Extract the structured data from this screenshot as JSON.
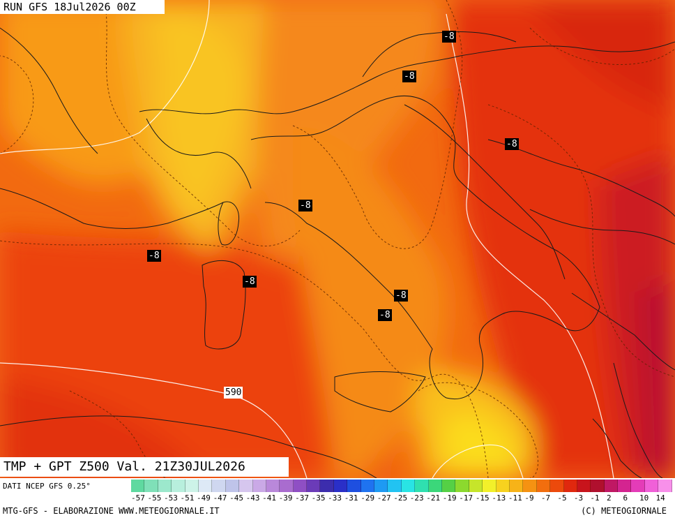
{
  "header": {
    "run": "RUN GFS 18Jul2026 00Z"
  },
  "valid_label": "TMP + GPT Z500 Val. 21Z30JUL2026",
  "isotherm_badges": [
    "-8",
    "-8",
    "-8",
    "-8",
    "-8",
    "-8",
    "-8",
    "-8"
  ],
  "geopotential_badge": "590",
  "legend": {
    "source": "DATI NCEP GFS 0.25°",
    "ticks": [
      "-57",
      "-55",
      "-53",
      "-51",
      "-49",
      "-47",
      "-45",
      "-43",
      "-41",
      "-39",
      "-37",
      "-35",
      "-33",
      "-31",
      "-29",
      "-27",
      "-25",
      "-23",
      "-21",
      "-19",
      "-17",
      "-15",
      "-13",
      "-11",
      "-9",
      "-7",
      "-5",
      "-3",
      "-1",
      "2",
      "6",
      "10",
      "14"
    ],
    "colors": [
      "#5fd9a0",
      "#7fe0b8",
      "#9ce8cc",
      "#b8efdd",
      "#cdf3e8",
      "#dde9f6",
      "#cfd7f0",
      "#bfc4ea",
      "#d6c6ee",
      "#caa9e6",
      "#b988da",
      "#a96ccf",
      "#8f4fc4",
      "#6b3bb8",
      "#3c2dad",
      "#2a2fc8",
      "#1e4fe0",
      "#1f73f0",
      "#1e9af3",
      "#22c3f2",
      "#29e4e4",
      "#2fe0b0",
      "#3bd77a",
      "#55d045",
      "#8cd92e",
      "#c6e52a",
      "#f2f02a",
      "#f7d21f",
      "#f7b318",
      "#f59212",
      "#f26e0e",
      "#ec4a0c",
      "#e0280e",
      "#c8141c",
      "#b0102e",
      "#c01864",
      "#d42490",
      "#e43cb8",
      "#f060d8",
      "#f890ea"
    ],
    "credit_left": "MTG-GFS - ELABORAZIONE WWW.METEOGIORNALE.IT",
    "credit_right": "(C) METEOGIORNALE"
  }
}
